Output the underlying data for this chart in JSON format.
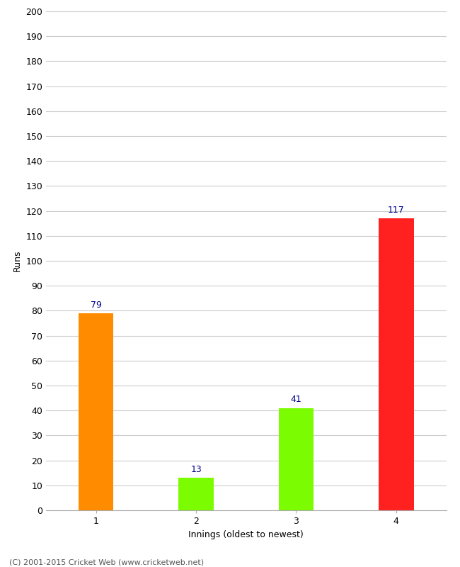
{
  "categories": [
    "1",
    "2",
    "3",
    "4"
  ],
  "values": [
    79,
    13,
    41,
    117
  ],
  "bar_colors": [
    "#ff8c00",
    "#7cfc00",
    "#7cfc00",
    "#ff2020"
  ],
  "xlabel": "Innings (oldest to newest)",
  "ylabel": "Runs",
  "ylim": [
    0,
    200
  ],
  "yticks": [
    0,
    10,
    20,
    30,
    40,
    50,
    60,
    70,
    80,
    90,
    100,
    110,
    120,
    130,
    140,
    150,
    160,
    170,
    180,
    190,
    200
  ],
  "value_label_color": "#00008b",
  "value_label_fontsize": 9,
  "axis_label_fontsize": 9,
  "tick_fontsize": 9,
  "footer_text": "(C) 2001-2015 Cricket Web (www.cricketweb.net)",
  "footer_fontsize": 8,
  "background_color": "#ffffff",
  "grid_color": "#cccccc",
  "bar_width": 0.35
}
